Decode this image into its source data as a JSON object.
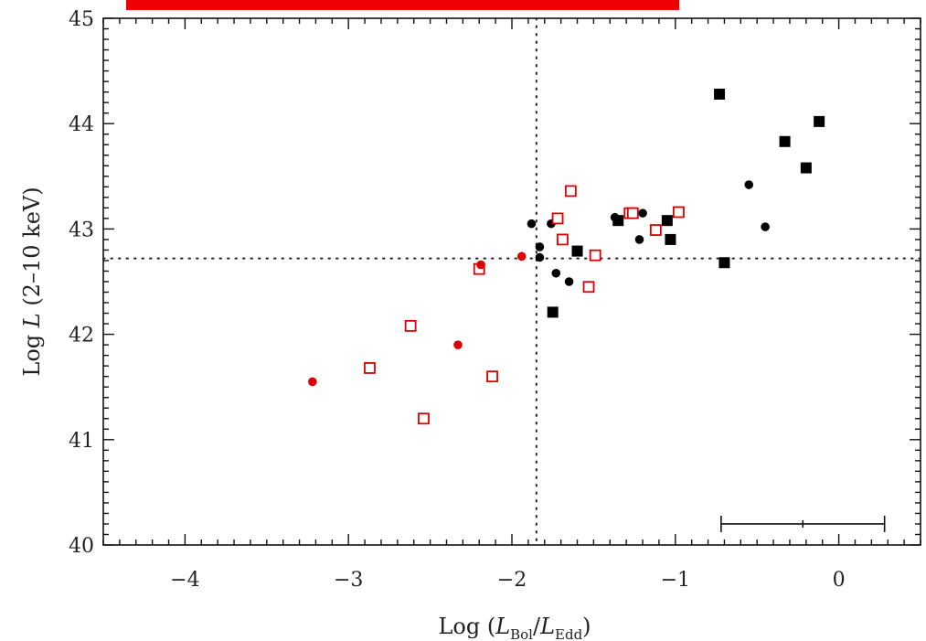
{
  "chart_data": {
    "type": "scatter",
    "title": "",
    "xlabel": {
      "main": "Log (",
      "var1": "L",
      "sub1": "Bol",
      "slash": "/",
      "var2": "L",
      "sub2": "Edd",
      "close": ")"
    },
    "ylabel": {
      "main": "Log ",
      "var": "L",
      "rest": " (2–10 keV)"
    },
    "xlim": [
      -4.5,
      0.5
    ],
    "ylim": [
      40,
      45
    ],
    "xticks": [
      {
        "value": -4,
        "label": "−4"
      },
      {
        "value": -3,
        "label": "−3"
      },
      {
        "value": -2,
        "label": "−2"
      },
      {
        "value": -1,
        "label": "−1"
      },
      {
        "value": 0,
        "label": "0"
      }
    ],
    "yticks": [
      {
        "value": 40,
        "label": "40"
      },
      {
        "value": 41,
        "label": "41"
      },
      {
        "value": 42,
        "label": "42"
      },
      {
        "value": 43,
        "label": "43"
      },
      {
        "value": 44,
        "label": "44"
      },
      {
        "value": 45,
        "label": "45"
      }
    ],
    "reference_lines": {
      "vertical_x": -1.85,
      "horizontal_y": 42.72,
      "style": "dotted"
    },
    "colors": {
      "black": "#000000",
      "red": "#dd0000"
    },
    "series": [
      {
        "marker": "filled-square",
        "color": "black",
        "points": [
          [
            -0.73,
            44.28
          ],
          [
            -0.12,
            44.02
          ],
          [
            -0.33,
            43.83
          ],
          [
            -0.2,
            43.58
          ],
          [
            -1.35,
            43.08
          ],
          [
            -1.05,
            43.08
          ],
          [
            -1.03,
            42.9
          ],
          [
            -1.6,
            42.79
          ],
          [
            -0.7,
            42.68
          ],
          [
            -1.75,
            42.21
          ]
        ]
      },
      {
        "marker": "filled-circle",
        "color": "black",
        "points": [
          [
            -0.55,
            43.42
          ],
          [
            -0.45,
            43.02
          ],
          [
            -1.88,
            43.05
          ],
          [
            -1.76,
            43.05
          ],
          [
            -1.37,
            43.11
          ],
          [
            -1.2,
            43.15
          ],
          [
            -1.22,
            42.9
          ],
          [
            -1.83,
            42.83
          ],
          [
            -1.83,
            42.73
          ],
          [
            -1.73,
            42.58
          ],
          [
            -1.65,
            42.5
          ]
        ]
      },
      {
        "marker": "open-square",
        "color": "red",
        "points": [
          [
            -1.64,
            43.36
          ],
          [
            -1.72,
            43.1
          ],
          [
            -1.28,
            43.15
          ],
          [
            -1.26,
            43.15
          ],
          [
            -0.98,
            43.16
          ],
          [
            -1.12,
            42.99
          ],
          [
            -1.69,
            42.9
          ],
          [
            -1.49,
            42.75
          ],
          [
            -2.2,
            42.62
          ],
          [
            -1.53,
            42.45
          ],
          [
            -2.62,
            42.08
          ],
          [
            -2.87,
            41.68
          ],
          [
            -2.12,
            41.6
          ],
          [
            -2.54,
            41.2
          ]
        ]
      },
      {
        "marker": "filled-circle",
        "color": "red",
        "points": [
          [
            -1.94,
            42.74
          ],
          [
            -2.19,
            42.66
          ],
          [
            -2.33,
            41.9
          ],
          [
            -3.22,
            41.55
          ]
        ]
      }
    ],
    "error_bar": {
      "x_left": -0.72,
      "x_center": -0.22,
      "x_right": 0.28,
      "y": 40.2
    }
  }
}
